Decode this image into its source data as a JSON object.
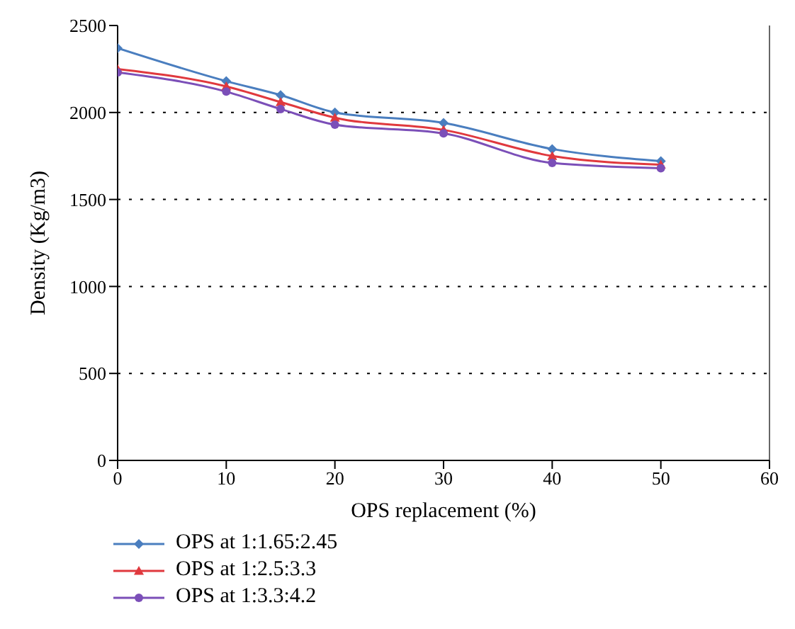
{
  "chart_data": {
    "type": "line",
    "xlabel": "OPS replacement (%)",
    "ylabel": "Density (Kg/m3)",
    "x": [
      0,
      10,
      15,
      20,
      30,
      40,
      50
    ],
    "xlim": [
      0,
      60
    ],
    "xticks": [
      0,
      10,
      20,
      30,
      40,
      50,
      60
    ],
    "ylim": [
      0,
      2500
    ],
    "yticks": [
      0,
      500,
      1000,
      1500,
      2000,
      2500
    ],
    "grid": "y",
    "legend": "bottom left",
    "line_style": "solid",
    "series": [
      {
        "name": "OPS at 1:1.65:2.45",
        "color": "#4a7ebf",
        "marker": "diamond",
        "values": [
          2370,
          2180,
          2100,
          2000,
          1940,
          1790,
          1720
        ]
      },
      {
        "name": "OPS at 1:2.5:3.3",
        "color": "#e0393e",
        "marker": "triangle",
        "values": [
          2250,
          2150,
          2060,
          1970,
          1900,
          1750,
          1700
        ]
      },
      {
        "name": "OPS at 1:3.3:4.2",
        "color": "#7b4fb8",
        "marker": "circle",
        "values": [
          2230,
          2120,
          2020,
          1930,
          1880,
          1710,
          1680
        ]
      }
    ]
  }
}
